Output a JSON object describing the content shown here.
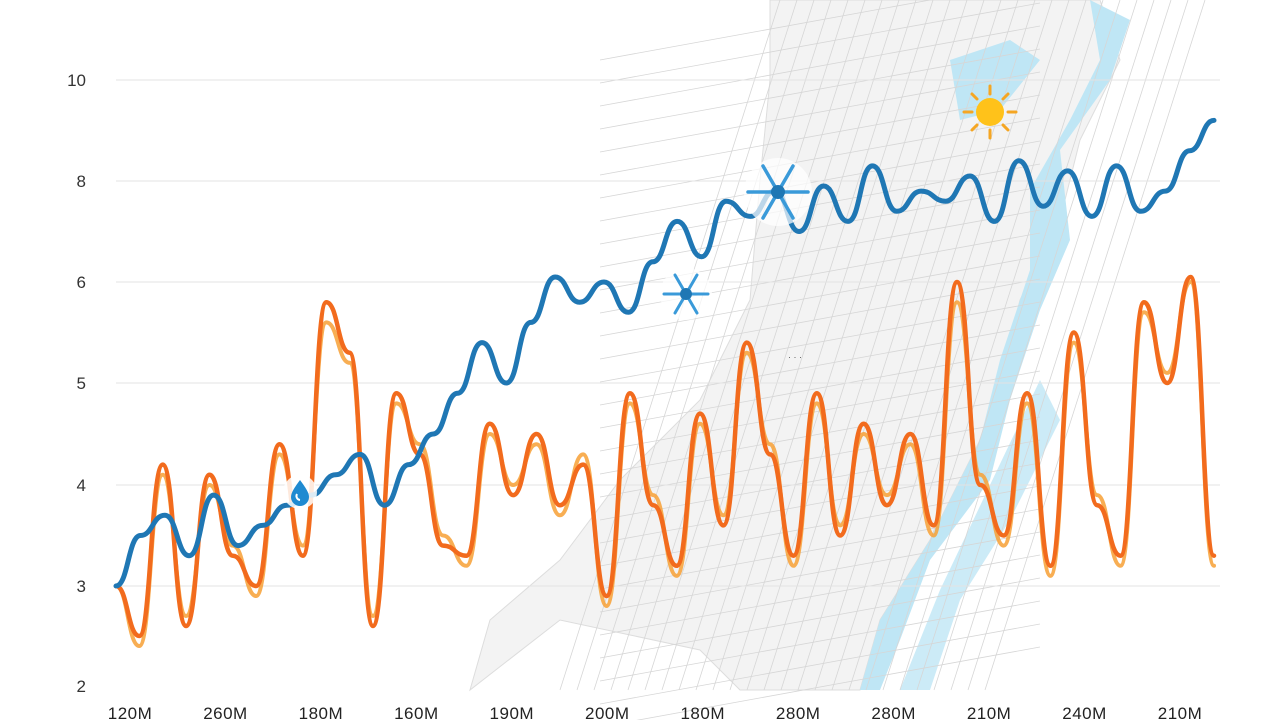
{
  "chart_data": {
    "type": "line",
    "title": "",
    "xlabel": "",
    "ylabel": "",
    "y_ticks": [
      "2",
      "3",
      "4",
      "5",
      "6",
      "8",
      "10"
    ],
    "x_tick_labels": [
      "120M",
      "260M",
      "180M",
      "160M",
      "190M",
      "200M",
      "180M",
      "280M",
      "280M",
      "210M",
      "240M",
      "210M"
    ],
    "grid": true,
    "legend": "none",
    "series": [
      {
        "color": "#1f77b4",
        "y": [
          3.0,
          3.5,
          3.7,
          3.3,
          3.9,
          3.4,
          3.6,
          3.8,
          3.9,
          4.1,
          4.3,
          3.8,
          4.2,
          4.5,
          4.9,
          5.4,
          5.0,
          5.6,
          6.1,
          5.8,
          6.0,
          5.7,
          6.4,
          7.2,
          6.5,
          7.6,
          7.3,
          7.8,
          7.0,
          7.9,
          7.2,
          8.3,
          7.4,
          7.8,
          7.6,
          8.1,
          7.2,
          8.4,
          7.5,
          8.2,
          7.3,
          8.3,
          7.4,
          7.8,
          8.6,
          9.2
        ]
      },
      {
        "color": "#f26b1d",
        "y": [
          3.0,
          2.5,
          4.2,
          2.6,
          4.1,
          3.3,
          3.0,
          4.4,
          3.3,
          5.8,
          5.3,
          2.6,
          4.9,
          4.3,
          3.4,
          3.3,
          4.6,
          3.9,
          4.5,
          3.8,
          4.2,
          2.9,
          4.9,
          3.8,
          3.2,
          4.7,
          3.6,
          5.4,
          4.3,
          3.3,
          4.9,
          3.5,
          4.6,
          3.8,
          4.5,
          3.6,
          6.0,
          4.0,
          3.5,
          4.9,
          3.2,
          5.5,
          3.8,
          3.3,
          5.8,
          5.0,
          6.1,
          3.3
        ]
      },
      {
        "color": "#f7a035",
        "y": [
          3.0,
          2.4,
          4.1,
          2.7,
          4.0,
          3.4,
          2.9,
          4.3,
          3.4,
          5.6,
          5.2,
          2.7,
          4.8,
          4.4,
          3.5,
          3.2,
          4.5,
          4.0,
          4.4,
          3.7,
          4.3,
          2.8,
          4.8,
          3.9,
          3.1,
          4.6,
          3.7,
          5.3,
          4.4,
          3.2,
          4.8,
          3.6,
          4.5,
          3.9,
          4.4,
          3.5,
          5.8,
          4.1,
          3.4,
          4.8,
          3.1,
          5.4,
          3.9,
          3.2,
          5.7,
          5.1,
          6.0,
          3.2
        ]
      }
    ]
  },
  "icons": [
    "water-drop-icon",
    "snowflake-icon",
    "snowflake-icon",
    "sun-icon"
  ],
  "colors": {
    "map_water": "#bfe6f5",
    "map_land": "#f2f2f2",
    "grid": "#e3e3e3"
  }
}
